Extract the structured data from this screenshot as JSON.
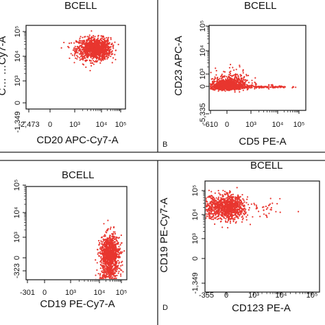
{
  "colors": {
    "dots": "#e8362f",
    "axis": "#111111",
    "divider": "#222222"
  },
  "chart_data": [
    {
      "type": "scatter",
      "title": "BCELL",
      "xlabel": "CD20 APC-Cy7-A",
      "ylabel": "C… …Cy7-A",
      "xscale": "biexponential",
      "yscale": "biexponential",
      "x_ticks": [
        "-2,473",
        "0",
        "10³",
        "10⁴",
        "10⁵"
      ],
      "y_ticks": [
        "-1,349",
        "0",
        "10³",
        "10⁴",
        "10⁵"
      ],
      "populations": [
        {
          "name": "",
          "center": [
            6000,
            20000
          ],
          "spread_decades": [
            0.35,
            0.22
          ],
          "events": 1200
        }
      ],
      "panel_label": ""
    },
    {
      "type": "scatter",
      "title": "BCELL",
      "xlabel": "CD5 PE-A",
      "ylabel": "CD23 APC-A",
      "xscale": "biexponential",
      "yscale": "biexponential",
      "x_ticks": [
        "-610",
        "0",
        "10³",
        "10⁴",
        "10⁵"
      ],
      "y_ticks": [
        "-5,335",
        "0",
        "10³",
        "10⁴",
        "10⁵"
      ],
      "populations": [
        {
          "name": "",
          "center": [
            0,
            0
          ],
          "spread_decades": [
            0.3,
            0.3
          ],
          "events": 1100
        },
        {
          "name": "",
          "center": [
            300,
            300
          ],
          "spread_decades": [
            0.35,
            0.45
          ],
          "events": 300
        },
        {
          "name": "",
          "center": [
            2000,
            -100
          ],
          "spread_decades": [
            0.6,
            0.12
          ],
          "events": 160
        }
      ],
      "panel_label": "B"
    },
    {
      "type": "scatter",
      "title": "BCELL",
      "xlabel": "CD19 PE-Cy7-A",
      "ylabel": "",
      "xscale": "biexponential",
      "yscale": "biexponential",
      "x_ticks": [
        "-301",
        "0",
        "10³",
        "10⁴",
        "10⁵"
      ],
      "y_ticks": [
        "-323",
        "0",
        "10³",
        "10⁴",
        "10⁵"
      ],
      "populations": [
        {
          "name": "",
          "center": [
            30000,
            30
          ],
          "spread_decades": [
            0.22,
            0.5
          ],
          "events": 1300
        }
      ],
      "panel_label": ""
    },
    {
      "type": "scatter",
      "title": "BCELL",
      "xlabel": "CD123 PE-A",
      "ylabel": "CD19 PE-Cy7-A",
      "xscale": "biexponential",
      "yscale": "biexponential",
      "x_ticks": [
        "-355",
        "0",
        "10³",
        "10⁴",
        "10⁵"
      ],
      "y_ticks": [
        "-1,349",
        "0",
        "10³",
        "10⁴",
        "10⁵"
      ],
      "populations": [
        {
          "name": "",
          "center": [
            30,
            20000
          ],
          "spread_decades": [
            0.3,
            0.25
          ],
          "events": 1100
        },
        {
          "name": "",
          "center": [
            1200,
            15000
          ],
          "spread_decades": [
            0.6,
            0.2
          ],
          "events": 60
        }
      ],
      "panel_label": "D"
    }
  ]
}
